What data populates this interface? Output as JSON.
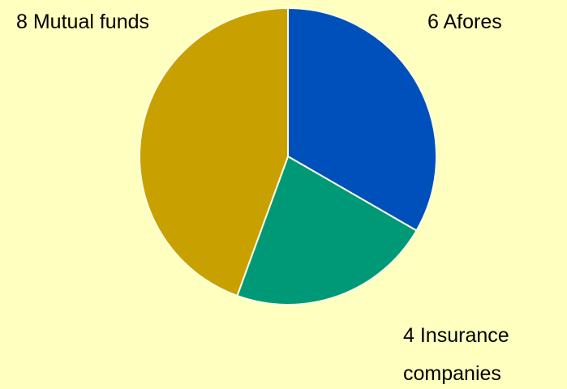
{
  "chart_data": {
    "type": "pie",
    "categories": [
      "Afores",
      "Insurance companies",
      "Mutual funds"
    ],
    "values": [
      6,
      4,
      8
    ],
    "colors": [
      "#0050bb",
      "#009977",
      "#c8a000"
    ]
  }
}
